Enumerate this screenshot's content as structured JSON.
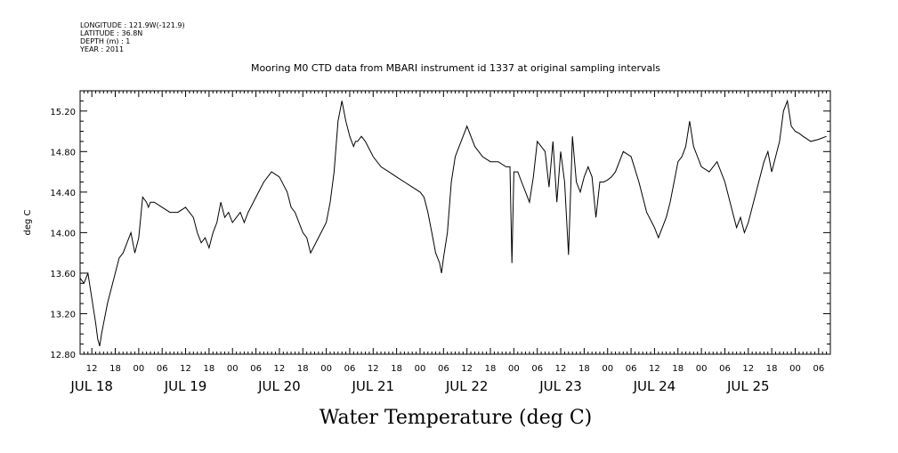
{
  "meta": {
    "longitude": "LONGITUDE : 121.9W(-121.9)",
    "latitude": "LATITUDE : 36.8N",
    "depth": "DEPTH (m) : 1",
    "year": "YEAR : 2011"
  },
  "chart_data": {
    "type": "line",
    "title": "Mooring M0 CTD data from MBARI instrument id 1337 at original sampling intervals",
    "xlabel": "Water Temperature (deg C)",
    "ylabel": "deg C",
    "ylim": [
      12.8,
      15.4
    ],
    "yticks": [
      "12.80",
      "13.20",
      "13.60",
      "14.00",
      "14.40",
      "14.80",
      "15.20"
    ],
    "xlim_hours": [
      9,
      201
    ],
    "hour_tick_labels": [
      "12",
      "18",
      "00",
      "06",
      "12",
      "18",
      "00",
      "06",
      "12",
      "18",
      "00",
      "06",
      "12",
      "18",
      "00",
      "06",
      "12",
      "18",
      "00",
      "06",
      "12",
      "18",
      "00",
      "06",
      "12",
      "18",
      "00",
      "06",
      "12",
      "18",
      "00",
      "06"
    ],
    "day_labels": [
      "JUL 18",
      "JUL 19",
      "JUL 20",
      "JUL 21",
      "JUL 22",
      "JUL 23",
      "JUL 24",
      "JUL 25"
    ],
    "grid": false,
    "series": [
      {
        "x": [
          9,
          10,
          11,
          12,
          13,
          13.5,
          14,
          14.5,
          15,
          16,
          17,
          18,
          19,
          20,
          21,
          22,
          23,
          24,
          25,
          26,
          26.5,
          27,
          28,
          30,
          32,
          34,
          36,
          38,
          39,
          40,
          41,
          42,
          43,
          44,
          45,
          46,
          47,
          48,
          49,
          50,
          51,
          52,
          54,
          56,
          58,
          60,
          62,
          63,
          64,
          65,
          66,
          67,
          68,
          70,
          72,
          73,
          74,
          75,
          76,
          77,
          78,
          78.5,
          79,
          79.5,
          80,
          81,
          82,
          84,
          86,
          88,
          90,
          92,
          94,
          96,
          97,
          98,
          99,
          100,
          100.5,
          101,
          101.5,
          102,
          103,
          104,
          105,
          106,
          107,
          108,
          110,
          112,
          114,
          116,
          118,
          119,
          119.5,
          120,
          121,
          122,
          123,
          124,
          125,
          126,
          127,
          128,
          129,
          130,
          131,
          132,
          133,
          134,
          135,
          136,
          137,
          138,
          139,
          140,
          141,
          142,
          143,
          144,
          145,
          146,
          147,
          148,
          150,
          152,
          154,
          156,
          157,
          158,
          159,
          160,
          161,
          162,
          163,
          164,
          165,
          166,
          167,
          168,
          170,
          172,
          174,
          176,
          177,
          178,
          179,
          180,
          181,
          182,
          183,
          184,
          185,
          186,
          187,
          188,
          189,
          190,
          191,
          192,
          193,
          194,
          196,
          198,
          200
        ],
        "y": [
          13.55,
          13.5,
          13.6,
          13.35,
          13.1,
          12.95,
          12.88,
          13.0,
          13.1,
          13.3,
          13.45,
          13.6,
          13.75,
          13.8,
          13.9,
          14.0,
          13.8,
          13.95,
          14.35,
          14.3,
          14.25,
          14.3,
          14.3,
          14.25,
          14.2,
          14.2,
          14.25,
          14.15,
          14.0,
          13.9,
          13.95,
          13.85,
          14.0,
          14.1,
          14.3,
          14.15,
          14.2,
          14.1,
          14.15,
          14.2,
          14.1,
          14.2,
          14.35,
          14.5,
          14.6,
          14.55,
          14.4,
          14.25,
          14.2,
          14.1,
          14.0,
          13.95,
          13.8,
          13.95,
          14.1,
          14.3,
          14.6,
          15.1,
          15.3,
          15.1,
          14.95,
          14.9,
          14.85,
          14.9,
          14.9,
          14.95,
          14.9,
          14.75,
          14.65,
          14.6,
          14.55,
          14.5,
          14.45,
          14.4,
          14.35,
          14.2,
          14.0,
          13.8,
          13.75,
          13.7,
          13.6,
          13.75,
          14.0,
          14.5,
          14.75,
          14.85,
          14.95,
          15.05,
          14.85,
          14.75,
          14.7,
          14.7,
          14.65,
          14.65,
          13.7,
          14.6,
          14.6,
          14.5,
          14.4,
          14.3,
          14.55,
          14.9,
          14.85,
          14.8,
          14.45,
          14.9,
          14.3,
          14.8,
          14.5,
          13.78,
          14.95,
          14.5,
          14.4,
          14.55,
          14.65,
          14.55,
          14.15,
          14.5,
          14.5,
          14.52,
          14.55,
          14.6,
          14.7,
          14.8,
          14.75,
          14.5,
          14.2,
          14.05,
          13.95,
          14.05,
          14.15,
          14.3,
          14.5,
          14.7,
          14.75,
          14.85,
          15.1,
          14.85,
          14.75,
          14.65,
          14.6,
          14.7,
          14.5,
          14.2,
          14.05,
          14.15,
          14.0,
          14.1,
          14.25,
          14.4,
          14.55,
          14.7,
          14.8,
          14.6,
          14.75,
          14.9,
          15.2,
          15.3,
          15.05,
          15.0,
          14.98,
          14.95,
          14.9,
          14.92,
          14.95
        ]
      }
    ]
  }
}
